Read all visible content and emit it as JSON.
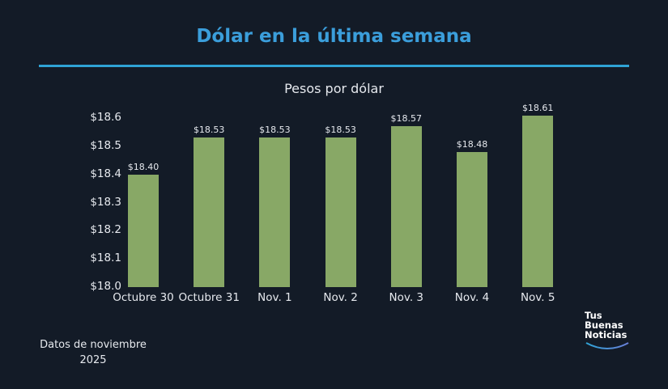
{
  "header": {
    "title": "Dólar en la última semana",
    "subtitle": "Pesos por dólar"
  },
  "footer": {
    "note_line1": "Datos de noviembre",
    "note_line2": "2025",
    "logo": {
      "line1": "Tus",
      "line2": "Buenas",
      "line3": "Noticias"
    }
  },
  "colors": {
    "title": "#3b9edb",
    "bar": "#88a866",
    "background": "#131b27",
    "rule": "#2fa3d6"
  },
  "chart_data": {
    "type": "bar",
    "title": "Dólar en la última semana",
    "subtitle": "Pesos por dólar",
    "xlabel": "",
    "ylabel": "",
    "categories": [
      "Octubre 30",
      "Octubre 31",
      "Nov. 1",
      "Nov. 2",
      "Nov. 3",
      "Nov. 4",
      "Nov. 5"
    ],
    "values": [
      18.4,
      18.53,
      18.53,
      18.53,
      18.57,
      18.48,
      18.61
    ],
    "data_labels": [
      "$18.40",
      "$18.53",
      "$18.53",
      "$18.53",
      "$18.57",
      "$18.48",
      "$18.61"
    ],
    "ylim": [
      18.0,
      18.6
    ],
    "yticks": [
      "$18.0",
      "$18.1",
      "$18.2",
      "$18.3",
      "$18.4",
      "$18.5",
      "$18.6"
    ],
    "grid": false,
    "legend": null
  }
}
